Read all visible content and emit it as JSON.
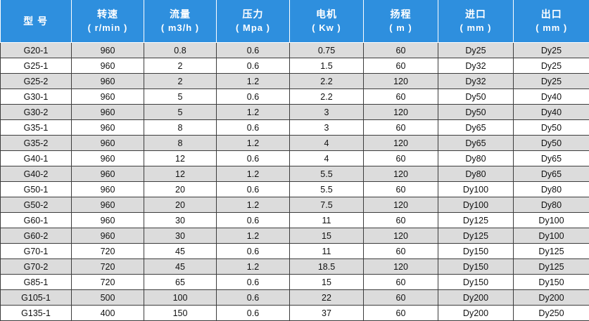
{
  "headers": [
    {
      "title": "型 号",
      "unit": ""
    },
    {
      "title": "转速",
      "unit": "( r/min )"
    },
    {
      "title": "流量",
      "unit": "( m3/h )"
    },
    {
      "title": "压力",
      "unit": "( Mpa )"
    },
    {
      "title": "电机",
      "unit": "( Kw )"
    },
    {
      "title": "扬程",
      "unit": "( m )"
    },
    {
      "title": "进口",
      "unit": "( mm )"
    },
    {
      "title": "出口",
      "unit": "( mm )"
    }
  ],
  "rows": [
    [
      "G20-1",
      "960",
      "0.8",
      "0.6",
      "0.75",
      "60",
      "Dy25",
      "Dy25"
    ],
    [
      "G25-1",
      "960",
      "2",
      "0.6",
      "1.5",
      "60",
      "Dy32",
      "Dy25"
    ],
    [
      "G25-2",
      "960",
      "2",
      "1.2",
      "2.2",
      "120",
      "Dy32",
      "Dy25"
    ],
    [
      "G30-1",
      "960",
      "5",
      "0.6",
      "2.2",
      "60",
      "Dy50",
      "Dy40"
    ],
    [
      "G30-2",
      "960",
      "5",
      "1.2",
      "3",
      "120",
      "Dy50",
      "Dy40"
    ],
    [
      "G35-1",
      "960",
      "8",
      "0.6",
      "3",
      "60",
      "Dy65",
      "Dy50"
    ],
    [
      "G35-2",
      "960",
      "8",
      "1.2",
      "4",
      "120",
      "Dy65",
      "Dy50"
    ],
    [
      "G40-1",
      "960",
      "12",
      "0.6",
      "4",
      "60",
      "Dy80",
      "Dy65"
    ],
    [
      "G40-2",
      "960",
      "12",
      "1.2",
      "5.5",
      "120",
      "Dy80",
      "Dy65"
    ],
    [
      "G50-1",
      "960",
      "20",
      "0.6",
      "5.5",
      "60",
      "Dy100",
      "Dy80"
    ],
    [
      "G50-2",
      "960",
      "20",
      "1.2",
      "7.5",
      "120",
      "Dy100",
      "Dy80"
    ],
    [
      "G60-1",
      "960",
      "30",
      "0.6",
      "11",
      "60",
      "Dy125",
      "Dy100"
    ],
    [
      "G60-2",
      "960",
      "30",
      "1.2",
      "15",
      "120",
      "Dy125",
      "Dy100"
    ],
    [
      "G70-1",
      "720",
      "45",
      "0.6",
      "11",
      "60",
      "Dy150",
      "Dy125"
    ],
    [
      "G70-2",
      "720",
      "45",
      "1.2",
      "18.5",
      "120",
      "Dy150",
      "Dy125"
    ],
    [
      "G85-1",
      "720",
      "65",
      "0.6",
      "15",
      "60",
      "Dy150",
      "Dy150"
    ],
    [
      "G105-1",
      "500",
      "100",
      "0.6",
      "22",
      "60",
      "Dy200",
      "Dy200"
    ],
    [
      "G135-1",
      "400",
      "150",
      "0.6",
      "37",
      "60",
      "Dy200",
      "Dy250"
    ]
  ],
  "colors": {
    "header_bg": "#2e8fde",
    "header_text": "#ffffff",
    "stripe": "#dcdcdc",
    "border": "#3c3c3c"
  }
}
